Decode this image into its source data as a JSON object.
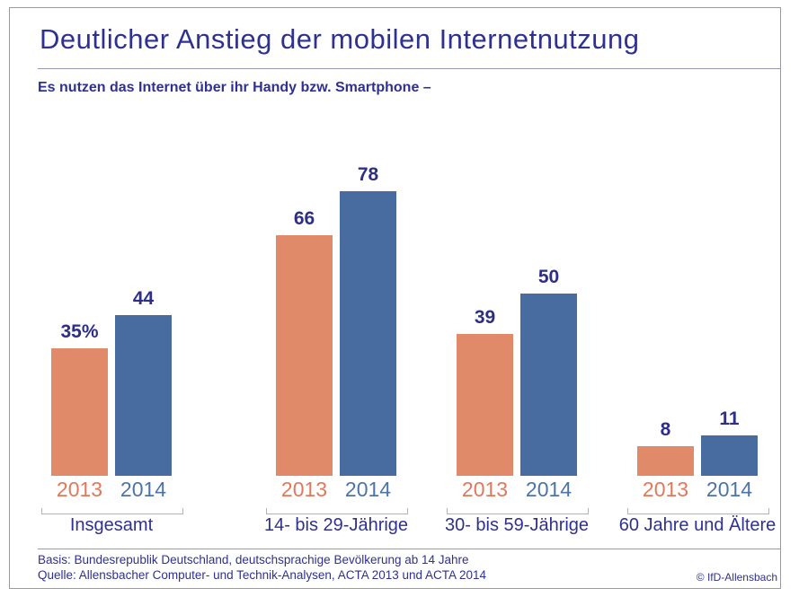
{
  "page": {
    "title": "Deutlicher Anstieg der mobilen Internetnutzung",
    "subtitle": "Es nutzen das Internet über ihr Handy bzw. Smartphone –",
    "footer": {
      "basis": "Basis: Bundesrepublik Deutschland, deutschsprachige Bevölkerung ab 14 Jahre",
      "quelle": "Quelle: Allensbacher Computer- und Technik-Analysen, ACTA 2013 und ACTA 2014",
      "copyright": "© IfD-Allensbach"
    }
  },
  "colors": {
    "title_text": "#2f3190",
    "value_text": "#2e2e87",
    "group_label_text": "#2f3190",
    "year_2013_text": "#e0795b",
    "year_2014_text": "#4c74a8",
    "bar_2013": "#e18a69",
    "bar_2014": "#486ca0",
    "rule": "#9898b4",
    "bracket": "#b3b3b3",
    "frame_border": "#9b9b9b"
  },
  "chart_data": {
    "type": "bar",
    "title": "Deutlicher Anstieg der mobilen Internetnutzung",
    "subtitle": "Es nutzen das Internet über ihr Handy bzw. Smartphone –",
    "unit": "percent",
    "ylim": [
      0,
      80
    ],
    "grid": false,
    "axes_shown": false,
    "legend_position": "year labels below each bar pair",
    "categories": [
      "Insgesamt",
      "14- bis 29-Jährige",
      "30- bis 59-Jährige",
      "60 Jahre und Ältere"
    ],
    "series": [
      {
        "name": "2013",
        "values": [
          35,
          66,
          39,
          8
        ],
        "color": "#e18a69"
      },
      {
        "name": "2014",
        "values": [
          44,
          78,
          50,
          11
        ],
        "color": "#486ca0"
      }
    ],
    "groups": [
      {
        "label": "Insgesamt",
        "bars": [
          {
            "year": "2013",
            "value": 35,
            "display": "35%"
          },
          {
            "year": "2014",
            "value": 44,
            "display": "44"
          }
        ]
      },
      {
        "label": "14- bis 29-Jährige",
        "bars": [
          {
            "year": "2013",
            "value": 66,
            "display": "66"
          },
          {
            "year": "2014",
            "value": 78,
            "display": "78"
          }
        ]
      },
      {
        "label": "30- bis 59-Jährige",
        "bars": [
          {
            "year": "2013",
            "value": 39,
            "display": "39"
          },
          {
            "year": "2014",
            "value": 50,
            "display": "50"
          }
        ]
      },
      {
        "label": "60 Jahre und Ältere",
        "bars": [
          {
            "year": "2013",
            "value": 8,
            "display": "8"
          },
          {
            "year": "2014",
            "value": 11,
            "display": "11"
          }
        ]
      }
    ]
  }
}
